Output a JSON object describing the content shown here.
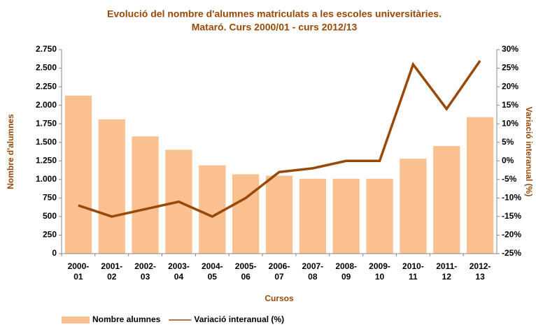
{
  "chart_data": {
    "type": "bar",
    "title": "Evolució del nombre d'alumnes matriculats a les escoles universitàries.",
    "subtitle": "Mataró. Curs 2000/01  - curs 2012/13",
    "x_label": "Cursos",
    "y_label": "Nombre d'alumnes",
    "y2_label": "Variació interanual (%)",
    "categories": [
      "2000-\n01",
      "2001-\n02",
      "2002-\n03",
      "2003-\n04",
      "2004-\n05",
      "2005-\n06",
      "2006-\n07",
      "2007-\n08",
      "2008-\n09",
      "2009-\n10",
      "2010-\n11",
      "2011-\n12",
      "2012-\n13"
    ],
    "series": [
      {
        "name": "Nombre alumnes",
        "type": "bar",
        "color": "#fac090",
        "values": [
          2130,
          1810,
          1580,
          1400,
          1190,
          1070,
          1050,
          1010,
          1010,
          1010,
          1280,
          1450,
          1840
        ]
      },
      {
        "name": "Variació interanual (%)",
        "type": "line",
        "axis": "y2",
        "color": "#984807",
        "values": [
          -12,
          -15,
          -13,
          -11,
          -15,
          -10,
          -3,
          -2,
          0,
          0,
          26,
          14,
          27
        ]
      }
    ],
    "ylim": [
      0,
      2750
    ],
    "yticks": [
      0,
      250,
      500,
      750,
      {
        "value": 1000,
        "label": "1.000"
      },
      {
        "value": 1250,
        "label": "1.250"
      },
      {
        "value": 1500,
        "label": "1.500"
      },
      {
        "value": 1750,
        "label": "1.750"
      },
      {
        "value": 2000,
        "label": "2.000"
      },
      {
        "value": 2250,
        "label": "2.250"
      },
      {
        "value": 2500,
        "label": "2.500"
      },
      {
        "value": 2750,
        "label": "2.750"
      }
    ],
    "y2lim": [
      -25,
      30
    ],
    "y2ticks": [
      {
        "value": -25,
        "label": "-25%"
      },
      {
        "value": -20,
        "label": "-20%"
      },
      {
        "value": -15,
        "label": "-15%"
      },
      {
        "value": -10,
        "label": "-10%"
      },
      {
        "value": -5,
        "label": "-5%"
      },
      {
        "value": 0,
        "label": "0%"
      },
      {
        "value": 5,
        "label": "5%"
      },
      {
        "value": 10,
        "label": "10%"
      },
      {
        "value": 15,
        "label": "15%"
      },
      {
        "value": 20,
        "label": "20%"
      },
      {
        "value": 25,
        "label": "25%"
      },
      {
        "value": 30,
        "label": "30%"
      }
    ],
    "grid": false,
    "legend": "bottom"
  }
}
